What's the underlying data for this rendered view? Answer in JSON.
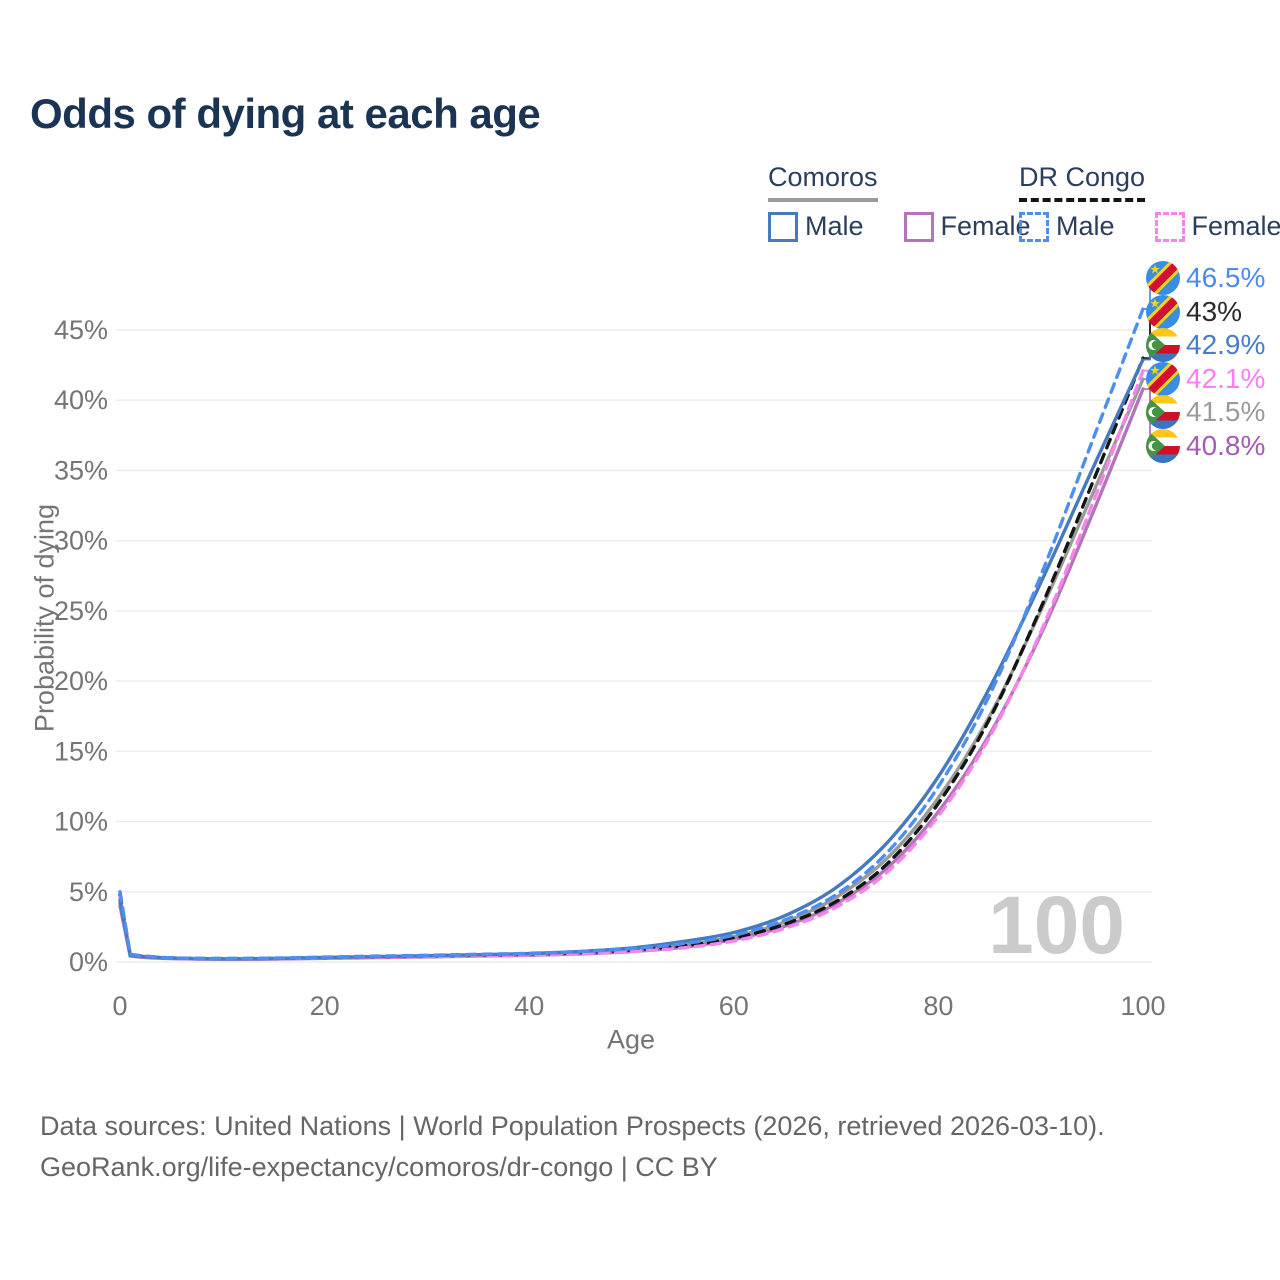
{
  "title": "Odds of dying at each age",
  "legend": {
    "groups": [
      {
        "label": "Comoros",
        "line_style": "solid",
        "underline_color": "#999999",
        "items": [
          {
            "label": "Male",
            "color": "#4779bd"
          },
          {
            "label": "Female",
            "color": "#b175b8"
          }
        ]
      },
      {
        "label": "DR Congo",
        "line_style": "dashed",
        "underline_color": "#141414",
        "items": [
          {
            "label": "Male",
            "color": "#4e8ef0"
          },
          {
            "label": "Female",
            "color": "#f883ec"
          }
        ]
      }
    ]
  },
  "watermark": "100",
  "footer": {
    "line1": "Data sources: United Nations | World Population Prospects (2026, retrieved 2026-03-10).",
    "line2": "GeoRank.org/life-expectancy/comoros/dr-congo | CC BY"
  },
  "chart_data": {
    "type": "line",
    "title": "Odds of dying at each age",
    "xlabel": "Age",
    "ylabel": "Probability of dying",
    "xlim": [
      0,
      100
    ],
    "ylim": [
      0,
      47
    ],
    "xticks": [
      0,
      20,
      40,
      60,
      80,
      100
    ],
    "yticks": [
      0,
      5,
      10,
      15,
      20,
      25,
      30,
      35,
      40,
      45
    ],
    "ytick_suffix": "%",
    "grid": true,
    "legend_position": "top-right",
    "x": [
      0,
      1,
      2,
      5,
      10,
      15,
      20,
      25,
      30,
      35,
      40,
      45,
      50,
      55,
      60,
      65,
      70,
      75,
      80,
      85,
      90,
      95,
      100
    ],
    "series": [
      {
        "key": "comoros_both",
        "name": "Comoros (both sexes)",
        "color": "#9a9a9a",
        "dash": false,
        "values": [
          4.2,
          0.45,
          0.37,
          0.26,
          0.21,
          0.23,
          0.29,
          0.35,
          0.41,
          0.47,
          0.54,
          0.65,
          0.85,
          1.2,
          1.8,
          2.85,
          4.6,
          7.4,
          11.7,
          17.5,
          25.0,
          33.2,
          41.5
        ]
      },
      {
        "key": "comoros_female",
        "name": "Comoros Female",
        "color": "#b175b8",
        "dash": false,
        "values": [
          4.0,
          0.42,
          0.35,
          0.24,
          0.2,
          0.21,
          0.26,
          0.31,
          0.36,
          0.42,
          0.48,
          0.58,
          0.75,
          1.05,
          1.6,
          2.55,
          4.15,
          6.7,
          10.7,
          16.2,
          23.3,
          31.8,
          40.8
        ]
      },
      {
        "key": "drc_both",
        "name": "DR Congo (both sexes)",
        "color": "#141414",
        "dash": true,
        "values": [
          4.8,
          0.52,
          0.43,
          0.29,
          0.24,
          0.26,
          0.32,
          0.38,
          0.44,
          0.5,
          0.56,
          0.67,
          0.85,
          1.15,
          1.7,
          2.7,
          4.3,
          7.0,
          11.3,
          17.3,
          25.2,
          34.0,
          43.0
        ]
      },
      {
        "key": "drc_female",
        "name": "DR Congo Female",
        "color": "#f883ec",
        "dash": true,
        "values": [
          4.6,
          0.5,
          0.41,
          0.28,
          0.23,
          0.24,
          0.29,
          0.34,
          0.39,
          0.44,
          0.5,
          0.59,
          0.75,
          1.0,
          1.5,
          2.4,
          3.9,
          6.4,
          10.4,
          16.0,
          23.5,
          32.5,
          42.1
        ]
      },
      {
        "key": "comoros_male",
        "name": "Comoros Male",
        "color": "#4779bd",
        "dash": false,
        "values": [
          4.4,
          0.5,
          0.4,
          0.28,
          0.22,
          0.25,
          0.32,
          0.38,
          0.45,
          0.52,
          0.6,
          0.75,
          1.0,
          1.45,
          2.1,
          3.3,
          5.3,
          8.5,
          13.2,
          19.5,
          27.0,
          35.0,
          42.9
        ]
      },
      {
        "key": "drc_male",
        "name": "DR Congo Male",
        "color": "#4e8ef0",
        "dash": true,
        "values": [
          5.0,
          0.55,
          0.45,
          0.3,
          0.25,
          0.28,
          0.35,
          0.42,
          0.48,
          0.55,
          0.62,
          0.75,
          0.95,
          1.3,
          1.9,
          3.0,
          4.8,
          7.8,
          12.5,
          19.0,
          27.5,
          37.0,
          46.5
        ]
      }
    ],
    "end_labels": [
      {
        "series": "drc_male",
        "flag": "dr_congo",
        "text": "46.5%",
        "color": "#4b8bf0"
      },
      {
        "series": "drc_both",
        "flag": "dr_congo",
        "text": "43%",
        "color": "#2b2b2b"
      },
      {
        "series": "comoros_male",
        "flag": "comoros",
        "text": "42.9%",
        "color": "#4a7cc8"
      },
      {
        "series": "drc_female",
        "flag": "dr_congo",
        "text": "42.1%",
        "color": "#fc7ef2"
      },
      {
        "series": "comoros_both",
        "flag": "comoros",
        "text": "41.5%",
        "color": "#9b9b9b"
      },
      {
        "series": "comoros_female",
        "flag": "comoros",
        "text": "40.8%",
        "color": "#a55cb5"
      }
    ]
  }
}
